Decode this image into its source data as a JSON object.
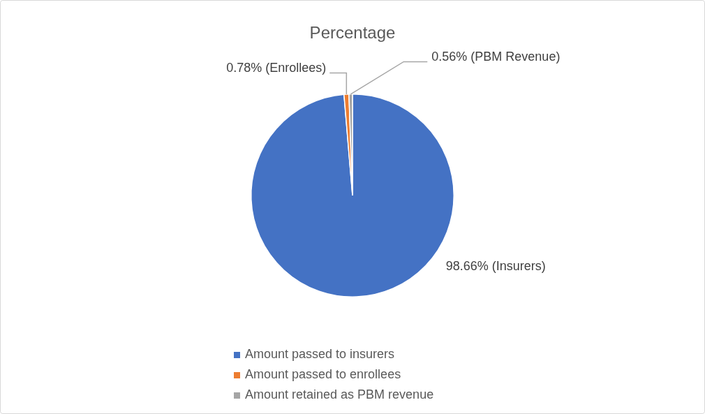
{
  "chart_data": {
    "type": "pie",
    "title": "Percentage",
    "categories": [
      "Amount passed to insurers",
      "Amount passed to enrollees",
      "Amount retained as PBM revenue"
    ],
    "values": [
      98.66,
      0.78,
      0.56
    ],
    "value_labels": [
      "98.66% (Insurers)",
      "0.78% (Enrollees)",
      "0.56% (PBM Revenue)"
    ],
    "colors": [
      "#4472c4",
      "#ed7d31",
      "#a5a5a5"
    ],
    "data_labels": true,
    "legend": "bottom"
  }
}
